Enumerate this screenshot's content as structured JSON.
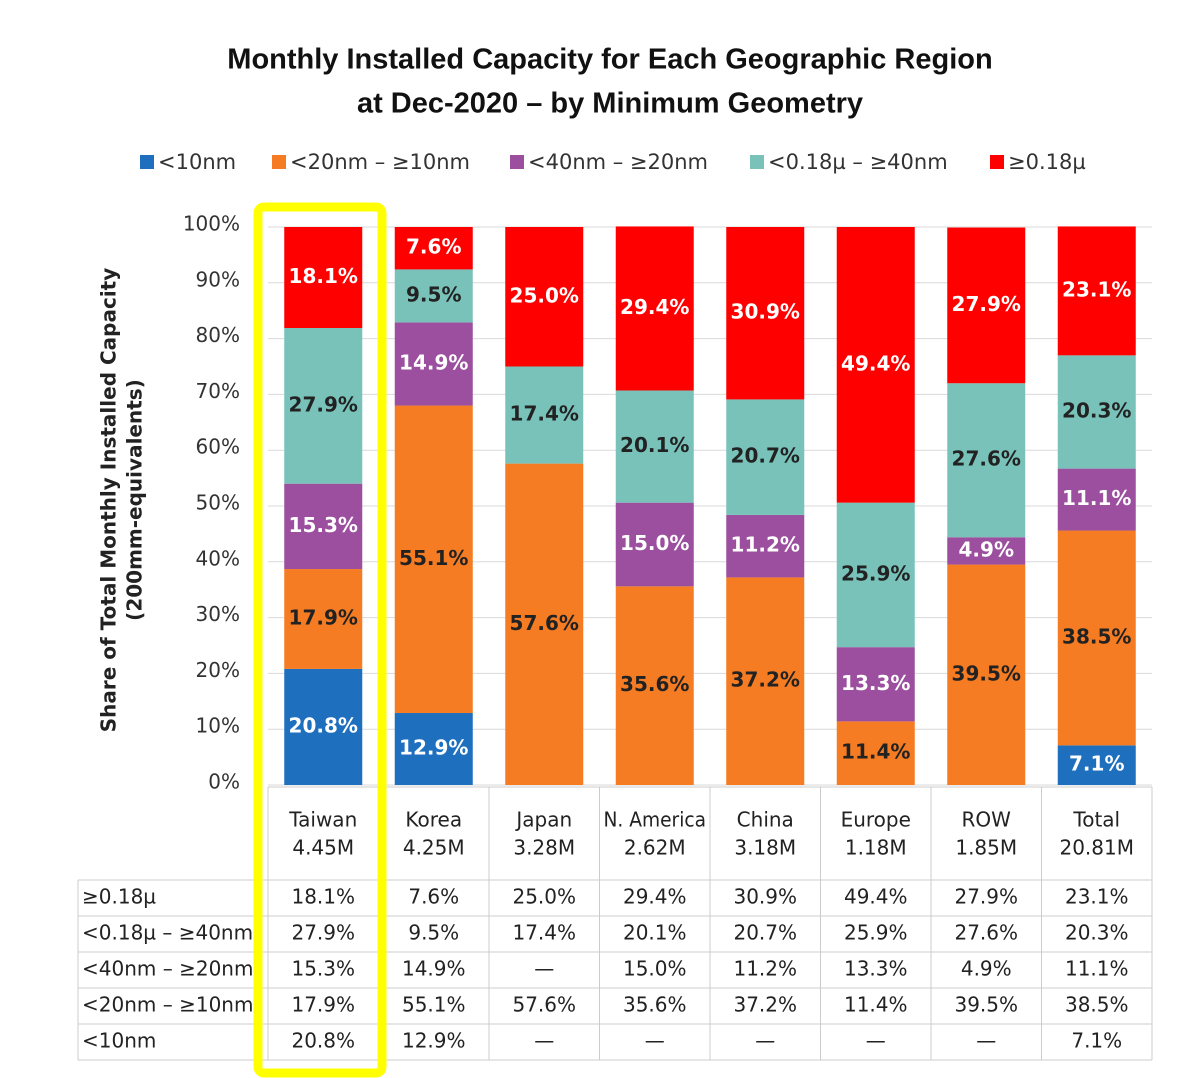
{
  "chart_data": {
    "type": "stacked_bar",
    "title": [
      "Monthly Installed Capacity for Each Geographic Region",
      "at Dec-2020 – by Minimum Geometry"
    ],
    "ylabel": [
      "Share of Total Monthly Installed Capacity",
      "(200mm-equivalents)"
    ],
    "categories": [
      "Taiwan",
      "Korea",
      "Japan",
      "N. America",
      "China",
      "Europe",
      "ROW",
      "Total"
    ],
    "category_totals": [
      "4.45M",
      "4.25M",
      "3.28M",
      "2.62M",
      "3.18M",
      "1.18M",
      "1.85M",
      "20.81M"
    ],
    "series": [
      {
        "name": "<10nm",
        "color": "#1f6fbf",
        "label_color": "#ffffff",
        "values": [
          20.8,
          12.9,
          null,
          null,
          null,
          null,
          null,
          7.1
        ],
        "value_labels": [
          "20.8%",
          "12.9%",
          "—",
          "—",
          "—",
          "—",
          "—",
          "7.1%"
        ]
      },
      {
        "name": "<20nm – ≥10nm",
        "color": "#f57c22",
        "label_color": "#222222",
        "values": [
          17.9,
          55.1,
          57.6,
          35.6,
          37.2,
          11.4,
          39.5,
          38.5
        ],
        "value_labels": [
          "17.9%",
          "55.1%",
          "57.6%",
          "35.6%",
          "37.2%",
          "11.4%",
          "39.5%",
          "38.5%"
        ]
      },
      {
        "name": "<40nm – ≥20nm",
        "color": "#9b4f9e",
        "label_color": "#ffffff",
        "values": [
          15.3,
          14.9,
          null,
          15.0,
          11.2,
          13.3,
          4.9,
          11.1
        ],
        "value_labels": [
          "15.3%",
          "14.9%",
          "—",
          "15.0%",
          "11.2%",
          "13.3%",
          "4.9%",
          "11.1%"
        ]
      },
      {
        "name": "<0.18µ – ≥40nm",
        "color": "#78c2ba",
        "label_color": "#222222",
        "values": [
          27.9,
          9.5,
          17.4,
          20.1,
          20.7,
          25.9,
          27.6,
          20.3
        ],
        "value_labels": [
          "27.9%",
          "9.5%",
          "17.4%",
          "20.1%",
          "20.7%",
          "25.9%",
          "27.6%",
          "20.3%"
        ]
      },
      {
        "name": "≥0.18µ",
        "color": "#ff0000",
        "label_color": "#ffffff",
        "values": [
          18.1,
          7.6,
          25.0,
          29.4,
          30.9,
          49.4,
          27.9,
          23.1
        ],
        "value_labels": [
          "18.1%",
          "7.6%",
          "25.0%",
          "29.4%",
          "30.9%",
          "49.4%",
          "27.9%",
          "23.1%"
        ]
      }
    ],
    "ylim": [
      0,
      100
    ],
    "yticks": [
      {
        "value": 0,
        "label": "0%"
      },
      {
        "value": 10,
        "label": "10%"
      },
      {
        "value": 20,
        "label": "20%"
      },
      {
        "value": 30,
        "label": "30%"
      },
      {
        "value": 40,
        "label": "40%"
      },
      {
        "value": 50,
        "label": "50%"
      },
      {
        "value": 60,
        "label": "60%"
      },
      {
        "value": 70,
        "label": "70%"
      },
      {
        "value": 80,
        "label": "80%"
      },
      {
        "value": 90,
        "label": "90%"
      },
      {
        "value": 100,
        "label": "100%"
      }
    ],
    "grid": true,
    "legend": "top"
  }
}
